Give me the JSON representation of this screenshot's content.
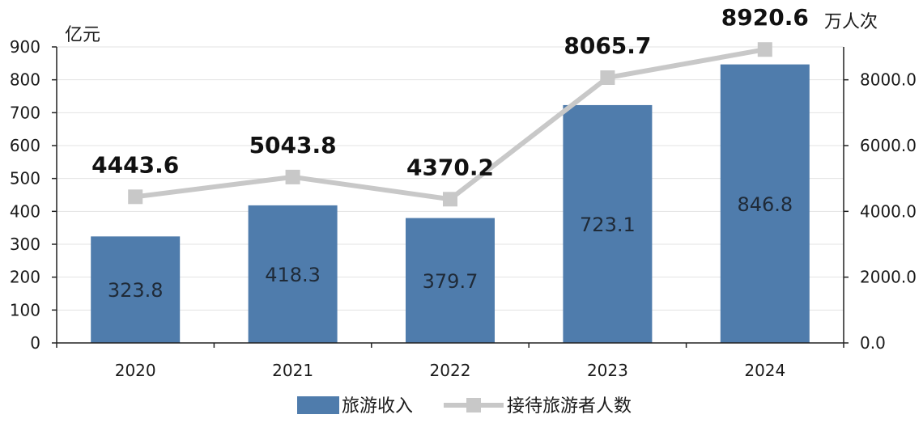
{
  "chart_data": {
    "type": "bar+line",
    "categories": [
      "2020",
      "2021",
      "2022",
      "2023",
      "2024"
    ],
    "series": [
      {
        "name": "旅游收入",
        "type": "bar",
        "axis": "left",
        "values": [
          323.8,
          418.3,
          379.7,
          723.1,
          846.8
        ],
        "labels": [
          "323.8",
          "418.3",
          "379.7",
          "723.1",
          "846.8"
        ],
        "color": "#4f7cac"
      },
      {
        "name": "接待旅游者人数",
        "type": "line",
        "axis": "right",
        "values": [
          4443.6,
          5043.8,
          4370.2,
          8065.7,
          8920.6
        ],
        "labels": [
          "4443.6",
          "5043.8",
          "4370.2",
          "8065.7",
          "8920.6"
        ],
        "color": "#c8c8c8"
      }
    ],
    "y_left": {
      "unit": "亿元",
      "ylim": [
        0,
        900
      ],
      "ticks": [
        "0",
        "100",
        "200",
        "300",
        "400",
        "500",
        "600",
        "700",
        "800",
        "900"
      ]
    },
    "y_right": {
      "unit": "万人次",
      "ylim": [
        0,
        9000
      ],
      "ticks": [
        "0.0",
        "2000.0",
        "4000.0",
        "6000.0",
        "8000.0"
      ],
      "tick_values": [
        0,
        2000,
        4000,
        6000,
        8000
      ]
    },
    "grid": true,
    "legend": "bottom"
  }
}
